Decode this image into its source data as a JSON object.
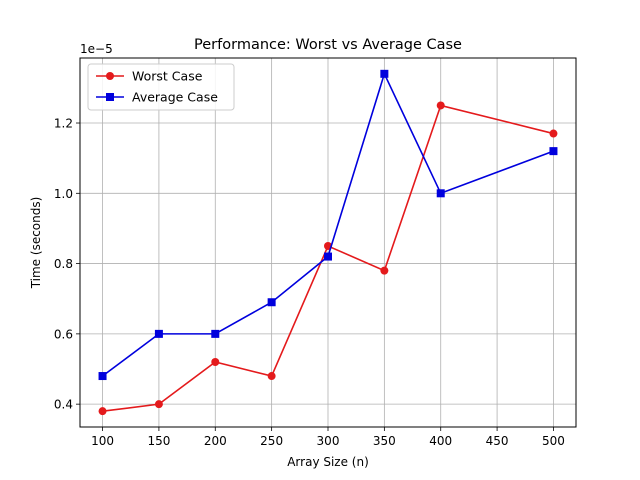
{
  "chart_data": {
    "type": "line",
    "title": "Performance: Worst vs Average Case",
    "xlabel": "Array Size (n)",
    "ylabel": "Time (seconds)",
    "y_offset_label": "1e−5",
    "xlim": [
      80,
      520
    ],
    "ylim": [
      0.335,
      1.385
    ],
    "xticks": [
      100,
      150,
      200,
      250,
      300,
      350,
      400,
      450,
      500
    ],
    "yticks": [
      0.4,
      0.6,
      0.8,
      1.0,
      1.2
    ],
    "ytick_labels": [
      "0.4",
      "0.6",
      "0.8",
      "1.0",
      "1.2"
    ],
    "grid": true,
    "legend_position": "upper-left",
    "x": [
      100,
      150,
      200,
      250,
      300,
      350,
      400,
      500
    ],
    "series": [
      {
        "name": "Worst Case",
        "color": "#e41a1c",
        "marker": "circle",
        "values": [
          0.38,
          0.4,
          0.52,
          0.48,
          0.85,
          0.78,
          1.25,
          1.17
        ]
      },
      {
        "name": "Average Case",
        "color": "#0000dd",
        "marker": "square",
        "values": [
          0.48,
          0.6,
          0.6,
          0.69,
          0.82,
          1.34,
          1.0,
          1.12
        ]
      }
    ]
  }
}
